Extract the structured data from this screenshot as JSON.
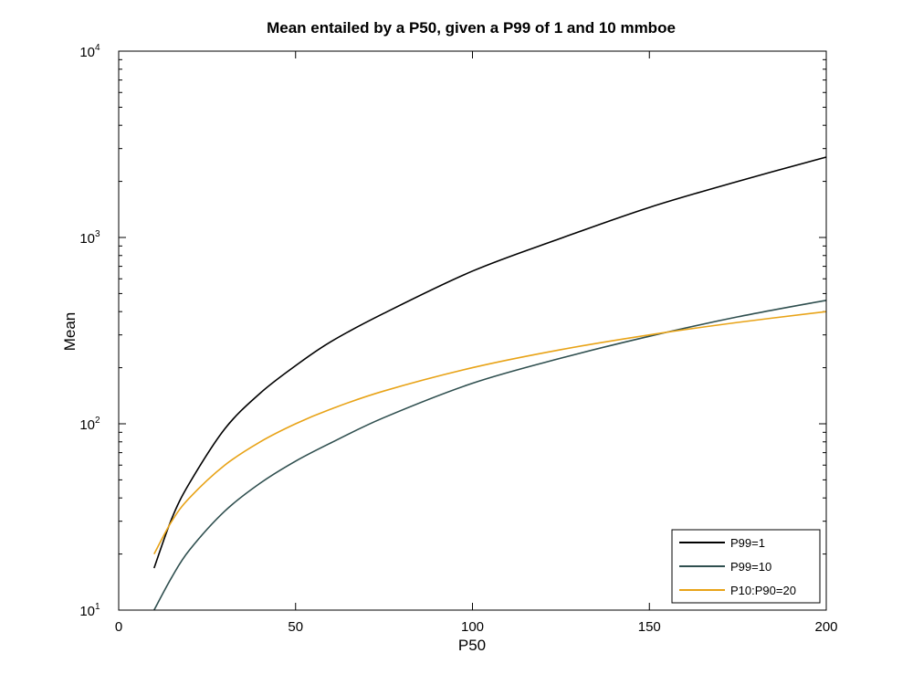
{
  "chart_data": {
    "type": "line",
    "title": "Mean entailed by a P50, given a P99 of 1 and 10 mmboe",
    "xlabel": "P50",
    "ylabel": "Mean",
    "xlim": [
      0,
      200
    ],
    "ylim": [
      10,
      10000
    ],
    "yscale": "log",
    "grid": false,
    "legend_position": "bottom-right",
    "x_ticks": [
      "0",
      "50",
      "100",
      "150",
      "200"
    ],
    "y_ticks": [
      {
        "base": "10",
        "exp": "1",
        "value": 10
      },
      {
        "base": "10",
        "exp": "2",
        "value": 100
      },
      {
        "base": "10",
        "exp": "3",
        "value": 1000
      },
      {
        "base": "10",
        "exp": "4",
        "value": 10000
      }
    ],
    "series": [
      {
        "name": "P99=1",
        "color": "#000000",
        "x": [
          10,
          15,
          20,
          30,
          40,
          50,
          60,
          75,
          100,
          125,
          150,
          175,
          200
        ],
        "y": [
          16.8,
          31,
          48,
          94,
          146,
          205,
          276,
          392,
          660,
          990,
          1450,
          2000,
          2700
        ]
      },
      {
        "name": "P99=10",
        "color": "#2f4f4f",
        "x": [
          10,
          15,
          20,
          30,
          40,
          50,
          60,
          75,
          100,
          125,
          150,
          175,
          200
        ],
        "y": [
          10,
          15,
          21,
          34,
          48,
          63,
          79,
          108,
          165,
          225,
          295,
          375,
          460
        ]
      },
      {
        "name": "P10:P90=20",
        "color": "#e8a317",
        "x": [
          10,
          15,
          20,
          30,
          40,
          50,
          60,
          75,
          100,
          125,
          150,
          175,
          200
        ],
        "y": [
          20,
          30,
          40,
          60,
          80,
          100,
          120,
          150,
          200,
          250,
          300,
          350,
          400
        ]
      }
    ]
  }
}
